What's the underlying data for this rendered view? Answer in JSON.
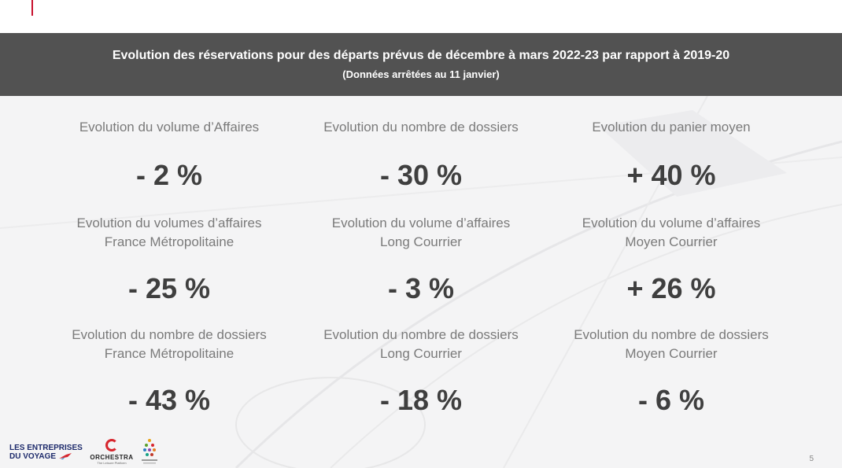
{
  "header": {
    "title": "Evolution des réservations pour des départs prévus de décembre à mars 2022-23 par rapport à 2019-20",
    "subtitle": "(Données arrêtées au 11 janvier)"
  },
  "rows": [
    [
      {
        "label1": "Evolution du volume d’Affaires",
        "label2": "",
        "value": "- 2 %"
      },
      {
        "label1": "Evolution du nombre de dossiers",
        "label2": "",
        "value": "- 30 %"
      },
      {
        "label1": "Evolution du panier moyen",
        "label2": "",
        "value": "+ 40 %"
      }
    ],
    [
      {
        "label1": "Evolution du volumes d’affaires",
        "label2": "France Métropolitaine",
        "value": "- 25 %"
      },
      {
        "label1": "Evolution du volume d’affaires",
        "label2": "Long Courrier",
        "value": "- 3 %"
      },
      {
        "label1": "Evolution du volume d’affaires",
        "label2": "Moyen Courrier",
        "value": "+ 26 %"
      }
    ],
    [
      {
        "label1": "Evolution du nombre de dossiers",
        "label2": "France Métropolitaine",
        "value": "- 43 %"
      },
      {
        "label1": "Evolution du nombre de dossiers",
        "label2": "Long Courrier",
        "value": "- 18 %"
      },
      {
        "label1": "Evolution du nombre de dossiers",
        "label2": "Moyen Courrier",
        "value": "- 6 %"
      }
    ]
  ],
  "footer": {
    "logo_epv_line1": "LES ENTREPRISES",
    "logo_epv_line2": "DU VOYAGE",
    "logo_orchestra": "ORCHESTRA",
    "logo_orchestra_tag": "The Leisure Platform",
    "page_number": "5"
  },
  "colors": {
    "banner": "#525252",
    "accent": "#c8102e",
    "value": "#3f3f3f",
    "label": "#7a7a7a"
  }
}
